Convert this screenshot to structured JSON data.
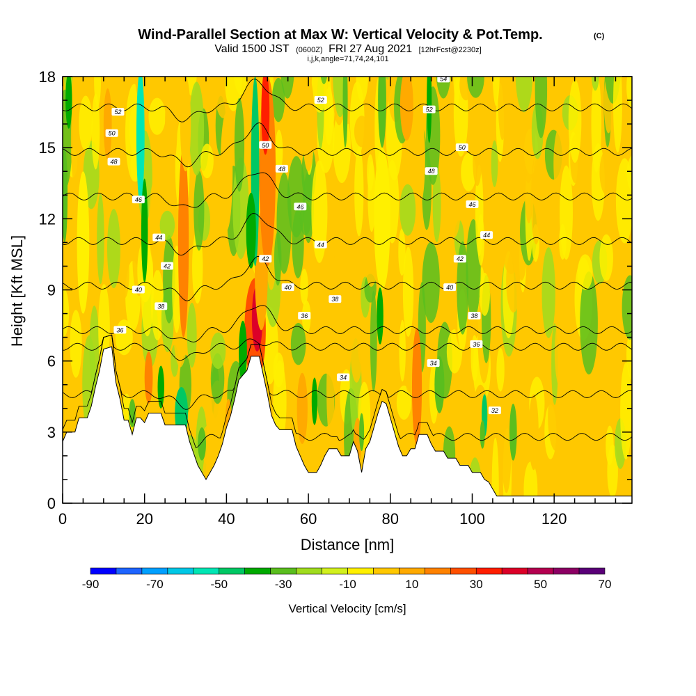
{
  "chart_data": {
    "type": "heatmap",
    "title": "Wind-Parallel Section at Max W: Vertical Velocity & Pot.Temp.",
    "title_mark": "(C)",
    "subtitle_a": "Valid 1500 JST",
    "subtitle_b": "(0600Z)",
    "subtitle_c": "FRI 27 Aug 2021",
    "subtitle_d": "[12hrFcst@2230z]",
    "subtitle2": "i,j,k,angle=71,74,24,101",
    "xlabel": "Distance [nm]",
    "ylabel": "Height [Kft MSL]",
    "xlim": [
      0,
      139
    ],
    "ylim": [
      0,
      18
    ],
    "x_ticks": [
      0,
      20,
      40,
      60,
      80,
      100,
      120
    ],
    "x_tick_labels": [
      "0",
      "20",
      "40",
      "60",
      "80",
      "100",
      "120"
    ],
    "y_ticks": [
      0,
      3,
      6,
      9,
      12,
      15,
      18
    ],
    "y_tick_labels": [
      "0",
      "3",
      "6",
      "9",
      "12",
      "15",
      "18"
    ],
    "colorbar": {
      "title": "Vertical Velocity [cm/s]",
      "min": -90,
      "max": 70,
      "step": 10,
      "labels": [
        "-90",
        "-70",
        "-50",
        "-30",
        "-10",
        "10",
        "30",
        "50",
        "70"
      ],
      "colors": [
        "#0000ff",
        "#1e64ff",
        "#00a0ff",
        "#00c8e6",
        "#00e6b4",
        "#00c864",
        "#00aa00",
        "#5abe1e",
        "#a0dc1e",
        "#d2f01e",
        "#fff000",
        "#ffc800",
        "#ffaa00",
        "#ff8200",
        "#ff5000",
        "#ff1e00",
        "#dc0028",
        "#b40050",
        "#8c0064",
        "#5a0078"
      ]
    },
    "terrain": [
      [
        0,
        2.6
      ],
      [
        1,
        3
      ],
      [
        3,
        3
      ],
      [
        4,
        3.6
      ],
      [
        6,
        3.6
      ],
      [
        7,
        4.1
      ],
      [
        8,
        4.9
      ],
      [
        9,
        5.6
      ],
      [
        10,
        6.5
      ],
      [
        12,
        6.6
      ],
      [
        13,
        5.1
      ],
      [
        14,
        4.4
      ],
      [
        15,
        3.5
      ],
      [
        16,
        3.5
      ],
      [
        17,
        2.9
      ],
      [
        18,
        3.6
      ],
      [
        19,
        3.6
      ],
      [
        20,
        3.4
      ],
      [
        21,
        3.8
      ],
      [
        24,
        3.8
      ],
      [
        25,
        3.3
      ],
      [
        30,
        3.3
      ],
      [
        31,
        2.6
      ],
      [
        32,
        2.1
      ],
      [
        33,
        1.6
      ],
      [
        34,
        1.3
      ],
      [
        35,
        1
      ],
      [
        36,
        1.3
      ],
      [
        37,
        1.6
      ],
      [
        38,
        2
      ],
      [
        39,
        2.5
      ],
      [
        40,
        3.2
      ],
      [
        41,
        3.7
      ],
      [
        42,
        4.4
      ],
      [
        43,
        5.2
      ],
      [
        44,
        5.4
      ],
      [
        45,
        5.6
      ],
      [
        46,
        6.2
      ],
      [
        48,
        6.2
      ],
      [
        49,
        5.4
      ],
      [
        50,
        4.6
      ],
      [
        51,
        3.7
      ],
      [
        52,
        3.3
      ],
      [
        53,
        3.1
      ],
      [
        56,
        3.1
      ],
      [
        57,
        2.4
      ],
      [
        58,
        2
      ],
      [
        59,
        1.6
      ],
      [
        60,
        1.3
      ],
      [
        62,
        1.3
      ],
      [
        63,
        1.6
      ],
      [
        64,
        2
      ],
      [
        65,
        2.3
      ],
      [
        67,
        2.3
      ],
      [
        68,
        2
      ],
      [
        70,
        2
      ],
      [
        71,
        2.6
      ],
      [
        72,
        2.2
      ],
      [
        73,
        1.3
      ],
      [
        74,
        2.3
      ],
      [
        75,
        2.6
      ],
      [
        76,
        3.2
      ],
      [
        77,
        3.8
      ],
      [
        78,
        4.3
      ],
      [
        79,
        4.2
      ],
      [
        80,
        3.6
      ],
      [
        81,
        3
      ],
      [
        82,
        2.4
      ],
      [
        83,
        2
      ],
      [
        84,
        2
      ],
      [
        85,
        2.3
      ],
      [
        86,
        2.3
      ],
      [
        87,
        2.9
      ],
      [
        89,
        2.9
      ],
      [
        90,
        2.5
      ],
      [
        91,
        2.2
      ],
      [
        93,
        2.2
      ],
      [
        94,
        1.9
      ],
      [
        96,
        1.9
      ],
      [
        97,
        1.6
      ],
      [
        99,
        1.6
      ],
      [
        100,
        1.3
      ],
      [
        102,
        1.3
      ],
      [
        103,
        1
      ],
      [
        104,
        0.9
      ],
      [
        105,
        0.6
      ],
      [
        106,
        0.3
      ],
      [
        139,
        0.3
      ]
    ],
    "theta_levels": [
      32,
      34,
      36,
      38,
      40,
      42,
      44,
      46,
      48,
      50,
      52,
      54
    ],
    "theta_labels": [
      {
        "x": 13.5,
        "y": 16.5,
        "text": "52"
      },
      {
        "x": 63,
        "y": 17,
        "text": "52"
      },
      {
        "x": 89.5,
        "y": 16.6,
        "text": "52"
      },
      {
        "x": 93,
        "y": 17.9,
        "text": "54"
      },
      {
        "x": 12,
        "y": 15.6,
        "text": "50"
      },
      {
        "x": 49.5,
        "y": 15.1,
        "text": "50"
      },
      {
        "x": 97.5,
        "y": 15,
        "text": "50"
      },
      {
        "x": 12.5,
        "y": 14.4,
        "text": "48"
      },
      {
        "x": 53.5,
        "y": 14.1,
        "text": "48"
      },
      {
        "x": 90,
        "y": 14,
        "text": "48"
      },
      {
        "x": 18.5,
        "y": 12.8,
        "text": "46"
      },
      {
        "x": 58,
        "y": 12.5,
        "text": "46"
      },
      {
        "x": 100,
        "y": 12.6,
        "text": "46"
      },
      {
        "x": 23.5,
        "y": 11.2,
        "text": "44"
      },
      {
        "x": 63,
        "y": 10.9,
        "text": "44"
      },
      {
        "x": 103.5,
        "y": 11.3,
        "text": "44"
      },
      {
        "x": 25.5,
        "y": 10,
        "text": "42"
      },
      {
        "x": 49.5,
        "y": 10.3,
        "text": "42"
      },
      {
        "x": 97,
        "y": 10.3,
        "text": "42"
      },
      {
        "x": 18.5,
        "y": 9,
        "text": "40"
      },
      {
        "x": 55,
        "y": 9.1,
        "text": "40"
      },
      {
        "x": 94.5,
        "y": 9.1,
        "text": "40"
      },
      {
        "x": 24,
        "y": 8.3,
        "text": "38"
      },
      {
        "x": 66.5,
        "y": 8.6,
        "text": "38"
      },
      {
        "x": 100.5,
        "y": 7.9,
        "text": "38"
      },
      {
        "x": 14,
        "y": 7.3,
        "text": "36"
      },
      {
        "x": 59,
        "y": 7.9,
        "text": "36"
      },
      {
        "x": 101,
        "y": 6.7,
        "text": "36"
      },
      {
        "x": 68.5,
        "y": 5.3,
        "text": "34"
      },
      {
        "x": 90.5,
        "y": 5.9,
        "text": "34"
      },
      {
        "x": 105.5,
        "y": 3.9,
        "text": "32"
      }
    ],
    "w_features": [
      {
        "x": 47,
        "y": 7.3,
        "w": 50,
        "rx": 2.6,
        "ry": 2.2
      },
      {
        "x": 47.5,
        "y": 7.8,
        "w": 70,
        "rx": 1.3,
        "ry": 1.4
      },
      {
        "x": 48.5,
        "y": 9.8,
        "w": 30,
        "rx": 1.6,
        "ry": 2.5
      },
      {
        "x": 50,
        "y": 14,
        "w": 40,
        "rx": 2,
        "ry": 4
      },
      {
        "x": 49.5,
        "y": 16.5,
        "w": 60,
        "rx": 1,
        "ry": 1.8
      },
      {
        "x": 29.5,
        "y": 11,
        "w": 40,
        "rx": 1.3,
        "ry": 4
      },
      {
        "x": 30,
        "y": 16,
        "w": 25,
        "rx": 1.3,
        "ry": 2
      },
      {
        "x": 21,
        "y": 5.3,
        "w": 40,
        "rx": 1,
        "ry": 1.1
      },
      {
        "x": 11,
        "y": 16,
        "w": 30,
        "rx": 1,
        "ry": 1.5
      },
      {
        "x": 86.5,
        "y": 4.9,
        "w": 60,
        "rx": 0.8,
        "ry": 1.7
      },
      {
        "x": 86.5,
        "y": 4.9,
        "w": 40,
        "rx": 1.2,
        "ry": 2.5
      },
      {
        "x": 58.5,
        "y": 4,
        "w": 30,
        "rx": 1.3,
        "ry": 1.5
      },
      {
        "x": 40.5,
        "y": 3.4,
        "w": 30,
        "rx": 0.8,
        "ry": 1
      },
      {
        "x": 72,
        "y": 2.6,
        "w": 30,
        "rx": 1,
        "ry": 1
      },
      {
        "x": 115,
        "y": 3,
        "w": 25,
        "rx": 1.2,
        "ry": 1.6
      },
      {
        "x": 84,
        "y": 16.8,
        "w": 30,
        "rx": 1.6,
        "ry": 1.5
      },
      {
        "x": 87,
        "y": 14.5,
        "w": 20,
        "rx": 1.5,
        "ry": 2
      },
      {
        "x": 60,
        "y": 16,
        "w": 20,
        "rx": 1.5,
        "ry": 2
      },
      {
        "x": 40,
        "y": 14,
        "w": 20,
        "rx": 1.5,
        "ry": 2.5
      },
      {
        "x": 26.5,
        "y": 16,
        "w": 20,
        "rx": 1.5,
        "ry": 2
      },
      {
        "x": 2,
        "y": 3.7,
        "w": 25,
        "rx": 1.2,
        "ry": 0.8
      },
      {
        "x": 102,
        "y": 3.5,
        "w": 20,
        "rx": 2,
        "ry": 1.5
      },
      {
        "x": 5,
        "y": 11,
        "w": 15,
        "rx": 1.5,
        "ry": 3
      },
      {
        "x": 78,
        "y": 12,
        "w": 15,
        "rx": 2,
        "ry": 3
      },
      {
        "x": 19,
        "y": 15.5,
        "w": -45,
        "rx": 1,
        "ry": 2.8
      },
      {
        "x": 20,
        "y": 11.5,
        "w": -25,
        "rx": 0.8,
        "ry": 2.2
      },
      {
        "x": 47,
        "y": 14,
        "w": -40,
        "rx": 1,
        "ry": 4
      },
      {
        "x": 46,
        "y": 11.5,
        "w": -25,
        "rx": 1.2,
        "ry": 1.6
      },
      {
        "x": 44,
        "y": 6.4,
        "w": -30,
        "rx": 1,
        "ry": 1.3
      },
      {
        "x": 1.5,
        "y": 17,
        "w": -30,
        "rx": 0.8,
        "ry": 1.2
      },
      {
        "x": 0.5,
        "y": 13,
        "w": -15,
        "rx": 0.7,
        "ry": 2
      },
      {
        "x": 29,
        "y": 3.8,
        "w": -35,
        "rx": 1.6,
        "ry": 1.1
      },
      {
        "x": 17,
        "y": 3.8,
        "w": -20,
        "rx": 0.8,
        "ry": 0.6
      },
      {
        "x": 24,
        "y": 4.9,
        "w": -25,
        "rx": 0.8,
        "ry": 0.9
      },
      {
        "x": 61.5,
        "y": 4.3,
        "w": -30,
        "rx": 0.7,
        "ry": 1
      },
      {
        "x": 77.5,
        "y": 7.9,
        "w": -25,
        "rx": 0.8,
        "ry": 1.2
      },
      {
        "x": 78,
        "y": 17,
        "w": -15,
        "rx": 1,
        "ry": 2
      },
      {
        "x": 89.5,
        "y": 17,
        "w": -25,
        "rx": 0.6,
        "ry": 1.8
      },
      {
        "x": 69,
        "y": 17,
        "w": -15,
        "rx": 0.6,
        "ry": 2
      },
      {
        "x": 103,
        "y": 3.7,
        "w": -35,
        "rx": 0.7,
        "ry": 0.9
      },
      {
        "x": 102.5,
        "y": 2.9,
        "w": -20,
        "rx": 0.6,
        "ry": 0.6
      },
      {
        "x": 110,
        "y": 3,
        "w": -15,
        "rx": 0.9,
        "ry": 1.2
      },
      {
        "x": 92,
        "y": 5,
        "w": -12,
        "rx": 1.2,
        "ry": 1.2
      },
      {
        "x": 73,
        "y": 3,
        "w": -12,
        "rx": 0.6,
        "ry": 0.8
      },
      {
        "x": 34,
        "y": 2.5,
        "w": -15,
        "rx": 1,
        "ry": 0.7
      }
    ]
  }
}
